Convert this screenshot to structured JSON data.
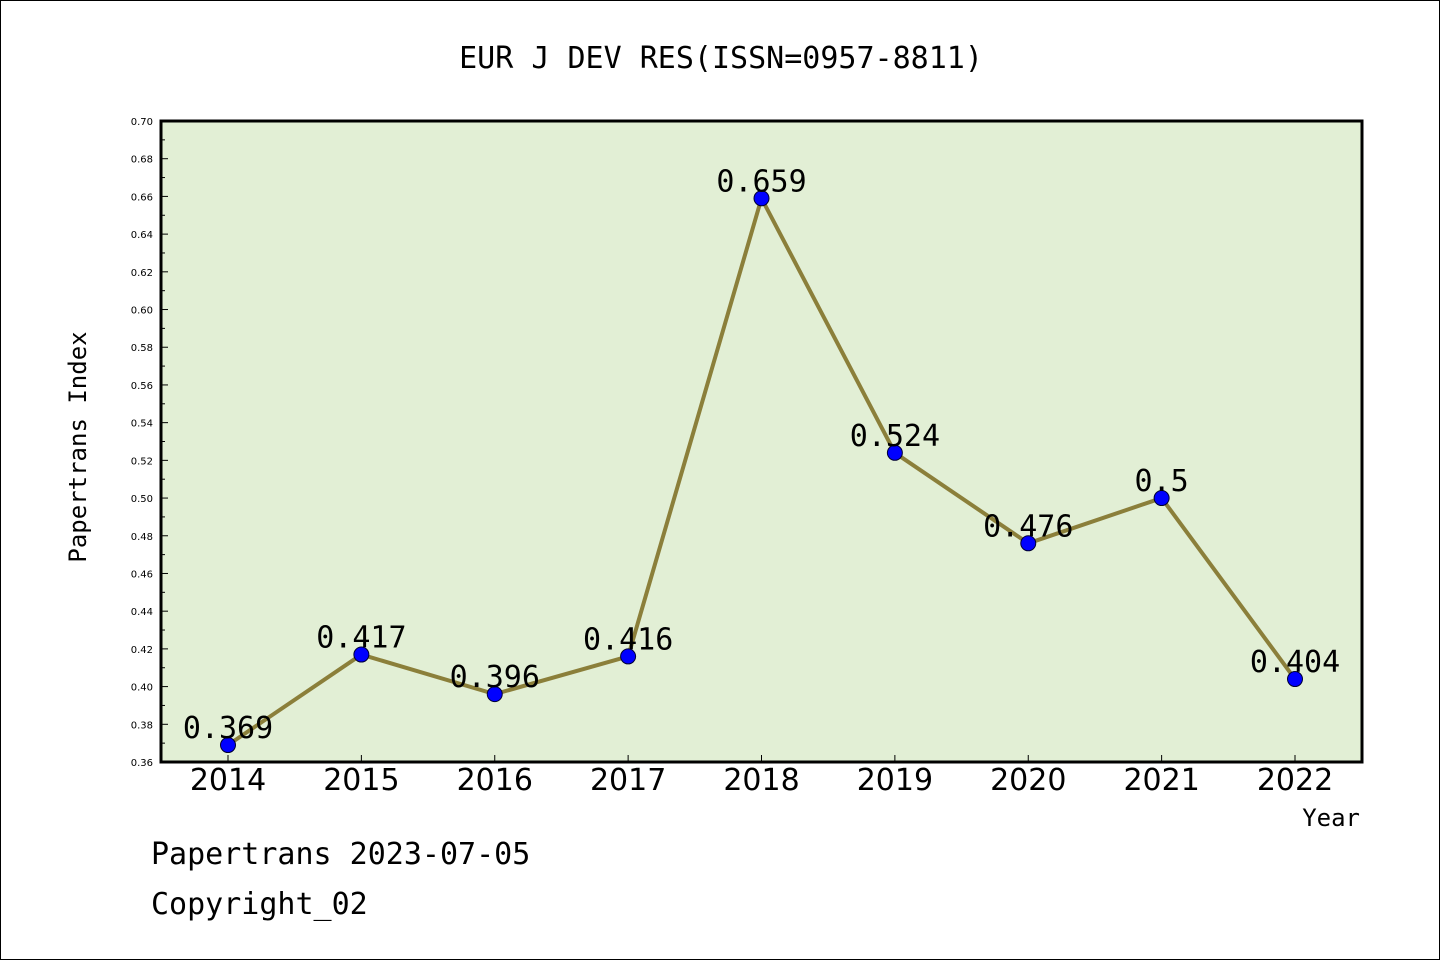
{
  "chart_data": {
    "type": "line",
    "title": "EUR J DEV RES(ISSN=0957-8811)",
    "xlabel": "Year",
    "ylabel": "Papertrans Index",
    "categories": [
      "2014",
      "2015",
      "2016",
      "2017",
      "2018",
      "2019",
      "2020",
      "2021",
      "2022"
    ],
    "values": [
      0.369,
      0.417,
      0.396,
      0.416,
      0.659,
      0.524,
      0.476,
      0.5,
      0.404
    ],
    "data_labels": [
      "0.369",
      "0.417",
      "0.396",
      "0.416",
      "0.659",
      "0.524",
      "0.476",
      "0.5",
      "0.404"
    ],
    "ylim": [
      0.36,
      0.7
    ],
    "yticks": [
      "0.36",
      "0.38",
      "0.40",
      "0.42",
      "0.44",
      "0.46",
      "0.48",
      "0.50",
      "0.52",
      "0.54",
      "0.56",
      "0.58",
      "0.60",
      "0.62",
      "0.64",
      "0.66",
      "0.68",
      "0.70"
    ],
    "grid": false,
    "colors": {
      "plot_background": "#e2efd5",
      "line": "#8b7f3a",
      "marker": "#0000ff"
    }
  },
  "footer": {
    "line1": "Papertrans 2023-07-05",
    "line2": "Copyright_02"
  }
}
